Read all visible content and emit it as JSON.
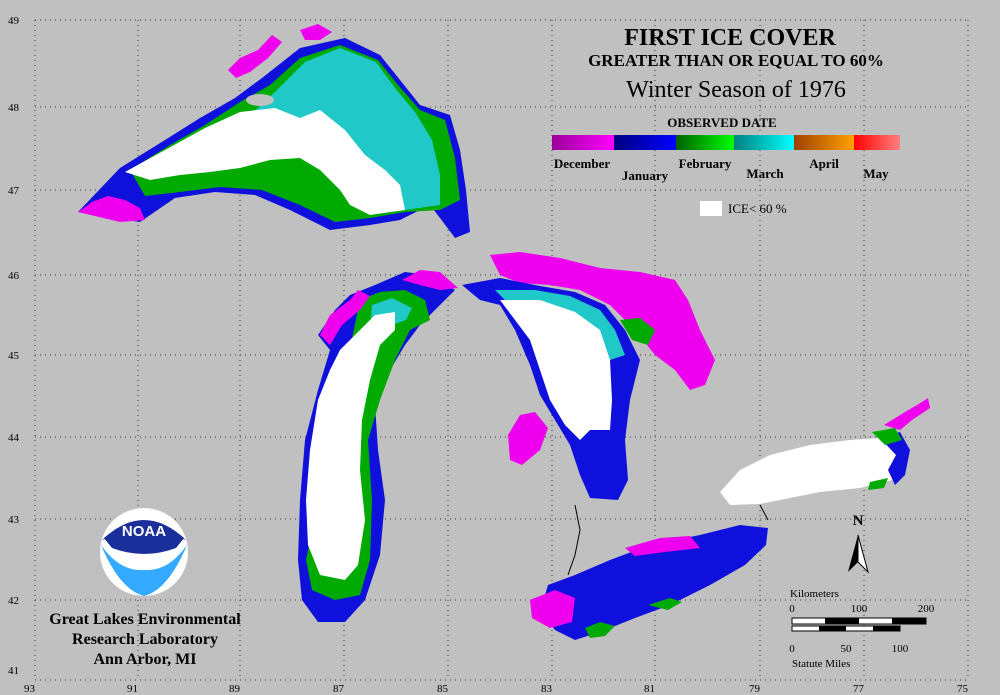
{
  "map": {
    "title": "FIRST ICE COVER",
    "subtitle": "GREATER THAN OR EQUAL TO 60%",
    "season": "Winter Season of 1976",
    "legend_title": "OBSERVED DATE",
    "legend_months": [
      {
        "label": "December",
        "color_from": "#9a009a",
        "color_to": "#ff00ff"
      },
      {
        "label": "January",
        "color_from": "#000080",
        "color_to": "#0000ff"
      },
      {
        "label": "February",
        "color_from": "#006000",
        "color_to": "#00ff00"
      },
      {
        "label": "March",
        "color_from": "#008080",
        "color_to": "#00ffff"
      },
      {
        "label": "April",
        "color_from": "#a04000",
        "color_to": "#ffa000"
      },
      {
        "label": "May",
        "color_from": "#ff0000",
        "color_to": "#ff8080"
      }
    ],
    "ice_below_label": "ICE< 60 %",
    "ice_below_color": "#ffffff",
    "longitude_labels": [
      "93",
      "91",
      "89",
      "87",
      "85",
      "83",
      "81",
      "79",
      "77",
      "75"
    ],
    "latitude_labels": [
      "49",
      "48",
      "47",
      "46",
      "45",
      "44",
      "43",
      "42",
      "41"
    ],
    "north_label": "N",
    "scale": {
      "km_title": "Kilometers",
      "km_ticks": [
        "0",
        "100",
        "200"
      ],
      "mile_ticks": [
        "0",
        "50",
        "100"
      ],
      "mile_title": "Statute Miles"
    },
    "agency": {
      "logo_text": "NOAA",
      "line1": "Great Lakes Environmental",
      "line2": "Research Laboratory",
      "line3": "Ann Arbor, MI"
    },
    "colors": {
      "background": "#c0c0c0",
      "december": "#ee00ee",
      "january": "#1010dd",
      "february": "#00aa00",
      "march": "#20c8c8",
      "white_ice": "#ffffff"
    }
  }
}
